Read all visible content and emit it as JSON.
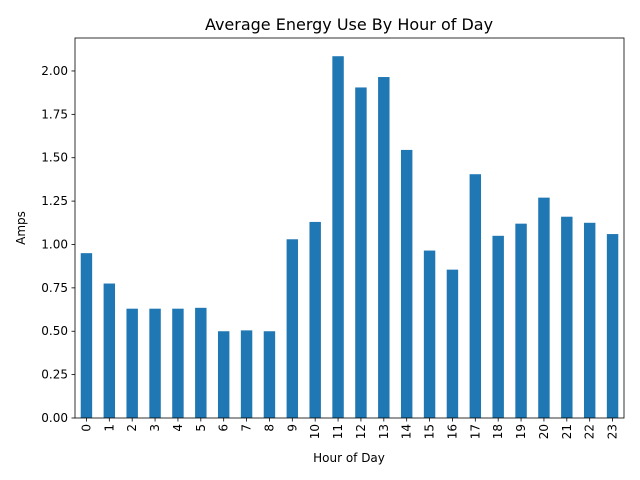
{
  "chart_data": {
    "type": "bar",
    "title": "Average Energy Use By Hour of Day",
    "xlabel": "Hour of Day",
    "ylabel": "Amps",
    "categories": [
      "0",
      "1",
      "2",
      "3",
      "4",
      "5",
      "6",
      "7",
      "8",
      "9",
      "10",
      "11",
      "12",
      "13",
      "14",
      "15",
      "16",
      "17",
      "18",
      "19",
      "20",
      "21",
      "22",
      "23"
    ],
    "values": [
      0.95,
      0.775,
      0.63,
      0.63,
      0.63,
      0.635,
      0.5,
      0.505,
      0.5,
      1.03,
      1.13,
      2.085,
      1.905,
      1.965,
      1.545,
      0.965,
      0.855,
      1.405,
      1.05,
      1.12,
      1.27,
      1.16,
      1.125,
      1.06
    ],
    "yticks": [
      "0.00",
      "0.25",
      "0.50",
      "0.75",
      "1.00",
      "1.25",
      "1.50",
      "1.75",
      "2.00"
    ],
    "ylim": [
      0,
      2.19
    ],
    "bar_color": "#1f77b4",
    "grid": false,
    "legend": "none"
  }
}
